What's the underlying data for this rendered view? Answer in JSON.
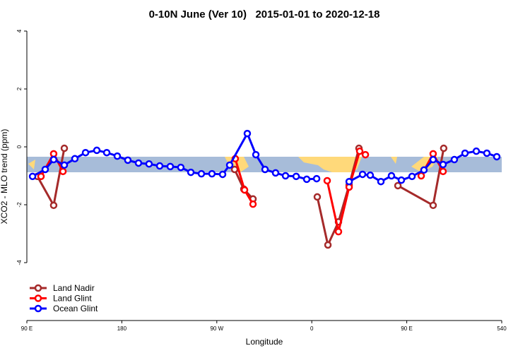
{
  "chart_data": {
    "type": "line",
    "title": "0-10N June (Ver 10)   2015-01-01 to 2020-12-18",
    "xlabel": "Longitude",
    "ylabel": "XCO2 - MLO trend (ppm)",
    "xlim": [
      90,
      540
    ],
    "xticks": [
      {
        "value": 90,
        "label": "90 E"
      },
      180,
      {
        "value": 270,
        "label": "90 W"
      },
      {
        "value": 360,
        "label": "0"
      },
      {
        "value": 450,
        "label": "90 E"
      },
      540
    ],
    "ylim": [
      -6,
      4
    ],
    "yticks": [
      -4,
      -2,
      0,
      2,
      4
    ],
    "legend": "bottom-left",
    "series": [
      {
        "name": "Land Nadir",
        "color": "#a52a2a",
        "x": [
          100,
          115.4,
          125.5,
          null,
          286.9,
          295.6,
          304.3,
          null,
          365.2,
          375.3,
          385.3,
          395.4,
          404.7,
          null,
          441.6,
          475,
          485
        ],
        "values": [
          -1.02,
          -2.02,
          -0.05,
          null,
          -0.78,
          -1.46,
          -1.8,
          null,
          -1.73,
          -3.39,
          -2.59,
          -1.32,
          -0.05,
          null,
          -1.34,
          -2.02,
          -0.05
        ]
      },
      {
        "name": "Land Glint",
        "color": "#ff0000",
        "x": [
          103.4,
          115.4,
          124.2,
          null,
          287.5,
          296.3,
          304.3,
          null,
          374.6,
          385.3,
          395.4,
          405.4,
          410.8,
          null,
          463.7,
          475,
          484.4
        ],
        "values": [
          -1.02,
          -0.24,
          -0.85,
          null,
          -0.41,
          -1.49,
          -1.98,
          null,
          -1.17,
          -2.93,
          -1.39,
          -0.15,
          -0.27,
          null,
          -1.0,
          -0.24,
          -0.85
        ]
      },
      {
        "name": "Ocean Glint",
        "color": "#0000ff",
        "x": [
          95.4,
          107.4,
          115.4,
          125.5,
          135.5,
          145.6,
          156.3,
          165.7,
          175.7,
          185.7,
          195.8,
          205.8,
          215.9,
          225.9,
          235.9,
          245.4,
          255.4,
          265.4,
          275.5,
          282.2,
          298.9,
          307,
          315.7,
          325.7,
          335.1,
          345.2,
          355.2,
          364.6,
          null,
          395.4,
          408.1,
          415.4,
          425.5,
          435.5,
          444.9,
          455,
          466.3,
          475,
          484.4,
          495.1,
          505.2,
          515.9,
          525.9,
          535.3
        ],
        "values": [
          -1.02,
          -0.78,
          -0.44,
          -0.63,
          -0.41,
          -0.2,
          -0.12,
          -0.2,
          -0.32,
          -0.46,
          -0.56,
          -0.59,
          -0.66,
          -0.68,
          -0.71,
          -0.88,
          -0.93,
          -0.93,
          -0.95,
          -0.63,
          0.46,
          -0.27,
          -0.78,
          -0.9,
          -1.0,
          -1.02,
          -1.12,
          -1.1,
          null,
          -1.2,
          -0.95,
          -0.98,
          -1.2,
          -1.0,
          -1.15,
          -1.02,
          -0.8,
          -0.44,
          -0.61,
          -0.44,
          -0.22,
          -0.15,
          -0.22,
          -0.34
        ]
      }
    ]
  }
}
